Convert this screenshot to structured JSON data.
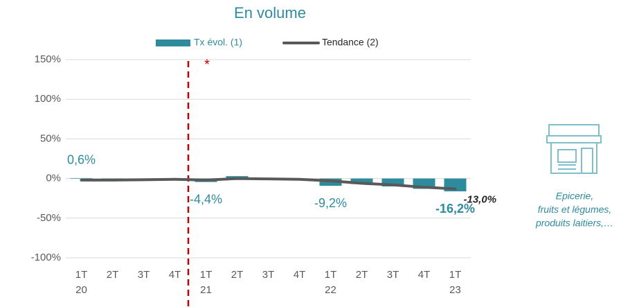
{
  "chart_data": {
    "type": "bar",
    "title": "En volume",
    "categories": [
      "1T\n20",
      "2T",
      "3T",
      "4T",
      "1T\n21",
      "2T",
      "3T",
      "4T",
      "1T\n22",
      "2T",
      "3T",
      "4T",
      "1T\n23"
    ],
    "series": [
      {
        "name": "Tx évol. (1)",
        "type": "bar",
        "color": "#2e8b9d",
        "values": [
          0.6,
          -0.5,
          -0.5,
          0,
          -4.4,
          3,
          0.5,
          -1,
          -9.2,
          -7,
          -10,
          -13,
          -16.2
        ],
        "value_labels": [
          "0,6%",
          null,
          null,
          null,
          "-4,4%",
          null,
          null,
          null,
          "-9,2%",
          null,
          null,
          null,
          "-16,2%"
        ]
      },
      {
        "name": "Tendance (2)",
        "type": "line",
        "color": "#595959",
        "values": [
          -2,
          -2,
          -1.5,
          -1,
          -2,
          0,
          -0.5,
          -1,
          -3,
          -6,
          -8,
          -11,
          -13
        ],
        "value_labels": [
          null,
          null,
          null,
          null,
          null,
          null,
          null,
          null,
          null,
          null,
          null,
          null,
          "-13,0%"
        ]
      }
    ],
    "ylim": [
      -100,
      150
    ],
    "yticks": [
      {
        "value": -100,
        "label": "-100%"
      },
      {
        "value": -50,
        "label": "-50%"
      },
      {
        "value": 0,
        "label": "0%"
      },
      {
        "value": 50,
        "label": "50%"
      },
      {
        "value": 100,
        "label": "100%"
      },
      {
        "value": 150,
        "label": "150%"
      }
    ],
    "grid": true,
    "annotation": "*",
    "side_note": [
      "Epicerie,",
      "fruits et légumes,",
      "produits laitiers,…"
    ]
  }
}
